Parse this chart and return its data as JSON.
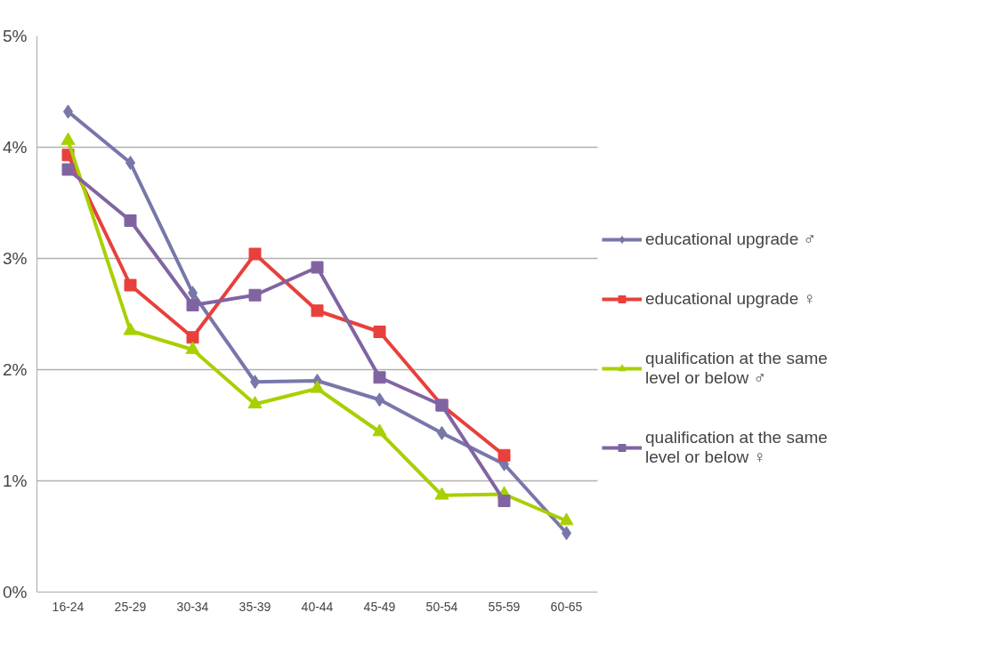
{
  "chart_data": {
    "type": "line",
    "categories": [
      "16-24",
      "25-29",
      "30-34",
      "35-39",
      "40-44",
      "45-49",
      "50-54",
      "55-59",
      "60-65"
    ],
    "series": [
      {
        "name": "educational upgrade ♂",
        "color": "#7777aa",
        "marker": "diamond",
        "values": [
          4.32,
          3.86,
          2.69,
          1.89,
          1.9,
          1.73,
          1.43,
          1.15,
          0.53
        ]
      },
      {
        "name": "educational upgrade ♀",
        "color": "#e8403c",
        "marker": "square",
        "values": [
          3.93,
          2.76,
          2.29,
          3.04,
          2.53,
          2.34,
          1.68,
          1.23,
          null
        ]
      },
      {
        "name": "qualification at the same level or below ♂",
        "color": "#a8d000",
        "marker": "triangle",
        "values": [
          4.06,
          2.35,
          2.18,
          1.69,
          1.83,
          1.44,
          0.87,
          0.88,
          0.64
        ]
      },
      {
        "name": "qualification at the same level or below ♀",
        "color": "#8064a2",
        "marker": "square",
        "values": [
          3.8,
          3.34,
          2.58,
          2.67,
          2.92,
          1.93,
          1.68,
          0.82,
          null
        ]
      }
    ],
    "ylim": [
      0,
      5
    ],
    "yticks": [
      {
        "value": 0,
        "label": "0%"
      },
      {
        "value": 1,
        "label": "1%"
      },
      {
        "value": 2,
        "label": "2%"
      },
      {
        "value": 3,
        "label": "3%"
      },
      {
        "value": 4,
        "label": "4%"
      },
      {
        "value": 5,
        "label": "5%"
      }
    ],
    "grid": "y",
    "legend": "right"
  }
}
